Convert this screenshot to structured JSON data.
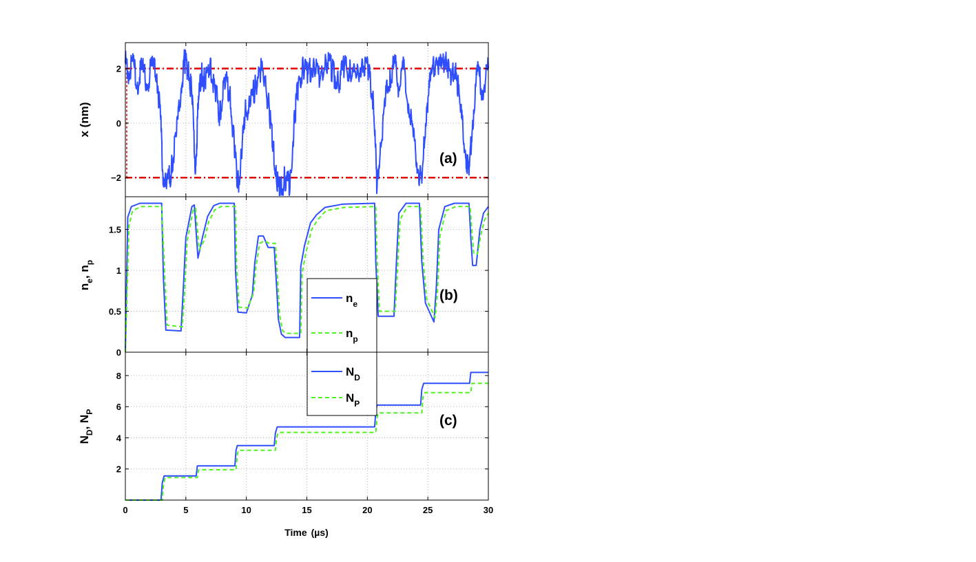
{
  "colors": {
    "series_blue": "#2f4fff",
    "series_green": "#4ef21e",
    "threshold_red": "#e00000",
    "axis": "#000000",
    "grid": "#b0b0b0"
  },
  "x_axis": {
    "label_main": "Time",
    "label_unit": "(µs)",
    "ticks": [
      "0",
      "5",
      "10",
      "15",
      "20",
      "25",
      "30"
    ]
  },
  "chart_data": [
    {
      "type": "line",
      "panel_label": "(a)",
      "ylabel": "x  (nm)",
      "xlim": [
        0,
        30
      ],
      "ylim": [
        -2.7,
        2.95
      ],
      "yticks": [
        "-2",
        "0",
        "2"
      ],
      "grid": true,
      "thresholds": [
        2,
        -2
      ],
      "series": [
        {
          "x": [
            0,
            0.3,
            0.6,
            1.0,
            1.4,
            1.8,
            2.2,
            2.6,
            2.9,
            3.1,
            3.4,
            3.8,
            4.2,
            4.6,
            4.9,
            5.2,
            5.5,
            5.8,
            6.0,
            6.3,
            6.6,
            7.0,
            7.4,
            7.8,
            8.2,
            8.6,
            9.0,
            9.3,
            9.6,
            9.9,
            10.3,
            10.7,
            11.1,
            11.5,
            11.9,
            12.2,
            12.5,
            12.8,
            13.2,
            13.6,
            14.0,
            14.3,
            14.7,
            15.1,
            15.6,
            16.1,
            16.6,
            17.1,
            17.6,
            18.1,
            18.6,
            19.1,
            19.6,
            20.1,
            20.5,
            20.8,
            21.1,
            21.5,
            21.9,
            22.3,
            22.6,
            23.0,
            23.4,
            23.8,
            24.2,
            24.5,
            24.9,
            25.3,
            25.7,
            26.1,
            26.5,
            26.9,
            27.3,
            27.7,
            28.1,
            28.4,
            28.7,
            29.1,
            29.5,
            30
          ],
          "values": [
            2.2,
            1.8,
            2.3,
            1.5,
            2.0,
            1.4,
            2.1,
            1.8,
            0.3,
            -1.9,
            -2.4,
            -1.7,
            -0.5,
            1.2,
            2.3,
            2.0,
            1.0,
            -1.8,
            0.5,
            1.9,
            1.4,
            2.2,
            1.3,
            0.3,
            1.6,
            1.2,
            -0.8,
            -2.3,
            -1.2,
            0.4,
            0.6,
            1.3,
            2.0,
            1.7,
            0.5,
            -0.8,
            -2.2,
            -2.5,
            -2.0,
            -2.4,
            0.3,
            1.5,
            2.1,
            1.8,
            2.2,
            1.6,
            2.3,
            1.9,
            1.5,
            2.1,
            2.0,
            1.7,
            2.3,
            1.9,
            0.8,
            -2.4,
            -0.8,
            0.9,
            1.7,
            2.2,
            1.3,
            2.0,
            0.7,
            -0.5,
            -1.7,
            -2.2,
            0.6,
            1.8,
            2.4,
            2.0,
            2.6,
            1.4,
            2.2,
            0.4,
            -1.0,
            -1.9,
            0.1,
            1.9,
            1.2,
            2.0
          ]
        }
      ]
    },
    {
      "type": "line",
      "panel_label": "(b)",
      "ylabel": "n_e, n_p",
      "xlim": [
        0,
        30
      ],
      "ylim": [
        0,
        1.9
      ],
      "yticks": [
        "0",
        "0.5",
        "1",
        "1.5"
      ],
      "grid": true,
      "legend": [
        "n_e",
        "n_p"
      ],
      "legend_position": "center",
      "series": [
        {
          "name": "n_e",
          "x": [
            0,
            0.2,
            0.5,
            1.2,
            3.0,
            3.15,
            3.35,
            4.6,
            4.8,
            5.0,
            5.5,
            5.7,
            6.0,
            6.4,
            6.8,
            7.3,
            7.8,
            8.5,
            9.0,
            9.1,
            9.3,
            10.0,
            10.5,
            10.7,
            11.0,
            11.4,
            11.8,
            12.3,
            12.5,
            12.65,
            12.9,
            13.2,
            14.4,
            14.5,
            14.8,
            15.3,
            15.8,
            16.5,
            18.0,
            20.6,
            20.7,
            20.9,
            22.2,
            22.4,
            22.6,
            23.2,
            24.3,
            24.5,
            24.8,
            25.5,
            25.7,
            25.9,
            26.4,
            27.2,
            28.4,
            28.55,
            28.7,
            29.0,
            29.3,
            29.6,
            30
          ],
          "values": [
            0.0,
            1.65,
            1.78,
            1.82,
            1.82,
            0.9,
            0.27,
            0.26,
            0.8,
            1.4,
            1.78,
            1.8,
            1.15,
            1.42,
            1.66,
            1.79,
            1.82,
            1.82,
            1.82,
            1.0,
            0.49,
            0.48,
            0.7,
            1.1,
            1.42,
            1.42,
            1.28,
            1.28,
            0.8,
            0.4,
            0.22,
            0.18,
            0.18,
            1.05,
            1.3,
            1.58,
            1.68,
            1.77,
            1.81,
            1.82,
            1.1,
            0.44,
            0.44,
            1.1,
            1.7,
            1.82,
            1.82,
            1.1,
            0.6,
            0.37,
            0.8,
            1.5,
            1.78,
            1.82,
            1.82,
            1.4,
            1.06,
            1.06,
            1.5,
            1.7,
            1.78
          ]
        },
        {
          "name": "n_p",
          "x": [
            0,
            0.3,
            0.6,
            1.3,
            3.0,
            3.25,
            3.45,
            4.7,
            4.9,
            5.1,
            5.6,
            5.8,
            6.1,
            6.5,
            6.9,
            7.4,
            7.9,
            8.6,
            9.1,
            9.2,
            9.4,
            10.1,
            10.6,
            10.8,
            11.1,
            11.5,
            11.9,
            12.4,
            12.6,
            12.75,
            13.0,
            13.3,
            14.5,
            14.6,
            14.9,
            15.4,
            15.9,
            16.6,
            18.1,
            20.7,
            20.8,
            21.0,
            22.3,
            22.5,
            22.7,
            23.3,
            24.4,
            24.6,
            24.9,
            25.6,
            25.8,
            26.0,
            26.5,
            27.3,
            28.5,
            28.65,
            28.8,
            29.1,
            29.4,
            29.7,
            30
          ],
          "values": [
            0.0,
            1.55,
            1.73,
            1.78,
            1.78,
            0.95,
            0.33,
            0.31,
            0.75,
            1.35,
            1.74,
            1.76,
            1.25,
            1.36,
            1.6,
            1.74,
            1.78,
            1.78,
            1.78,
            1.05,
            0.55,
            0.54,
            0.72,
            1.05,
            1.33,
            1.36,
            1.33,
            1.33,
            0.85,
            0.45,
            0.26,
            0.23,
            0.23,
            0.95,
            1.2,
            1.5,
            1.62,
            1.73,
            1.77,
            1.78,
            1.15,
            0.5,
            0.5,
            1.05,
            1.62,
            1.78,
            1.78,
            1.15,
            0.65,
            0.42,
            0.75,
            1.42,
            1.73,
            1.78,
            1.78,
            1.45,
            1.2,
            1.2,
            1.45,
            1.62,
            1.7
          ]
        }
      ]
    },
    {
      "type": "line",
      "panel_label": "(c)",
      "ylabel": "N_D, N_P",
      "xlim": [
        0,
        30
      ],
      "ylim": [
        0,
        9.5
      ],
      "yticks": [
        "2",
        "4",
        "6",
        "8"
      ],
      "grid": true,
      "legend": [
        "N_D",
        "N_P"
      ],
      "legend_position": "top-center",
      "series": [
        {
          "name": "N_D",
          "x": [
            0,
            2.95,
            3.05,
            3.2,
            5.85,
            5.95,
            9.05,
            9.15,
            9.25,
            12.3,
            12.4,
            12.55,
            20.6,
            20.7,
            20.8,
            24.4,
            24.5,
            24.65,
            28.45,
            28.55,
            30
          ],
          "values": [
            0,
            0,
            1.1,
            1.55,
            1.55,
            2.2,
            2.2,
            3.2,
            3.5,
            3.5,
            4.3,
            4.7,
            4.7,
            5.7,
            6.1,
            6.1,
            7.1,
            7.5,
            7.5,
            8.2,
            8.2
          ]
        },
        {
          "name": "N_P",
          "x": [
            0,
            3.05,
            3.15,
            3.3,
            5.95,
            6.05,
            9.15,
            9.25,
            9.35,
            12.4,
            12.5,
            12.65,
            20.7,
            20.8,
            20.9,
            24.5,
            24.6,
            24.75,
            28.55,
            28.65,
            30
          ],
          "values": [
            0,
            0,
            1.0,
            1.45,
            1.45,
            1.95,
            1.95,
            2.9,
            3.2,
            3.2,
            4.0,
            4.35,
            4.35,
            5.3,
            5.6,
            5.6,
            6.6,
            6.9,
            6.9,
            7.5,
            7.5
          ]
        }
      ]
    }
  ]
}
